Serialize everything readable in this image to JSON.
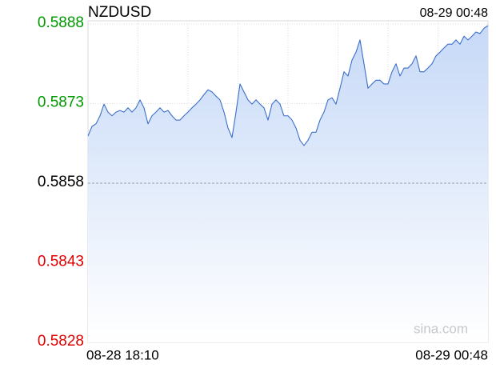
{
  "chart_data": {
    "type": "line",
    "title": "NZDUSD",
    "timestamp": "08-29 00:48",
    "watermark": "sina.com",
    "categories": [
      "08-28 18:10",
      null,
      null,
      null,
      null,
      null,
      null,
      null,
      null,
      null,
      null,
      null,
      null,
      null,
      null,
      null,
      null,
      null,
      null,
      null,
      null,
      null,
      null,
      null,
      null,
      null,
      null,
      null,
      null,
      null,
      null,
      null,
      null,
      null,
      null,
      null,
      null,
      null,
      null,
      null,
      null,
      null,
      null,
      null,
      null,
      null,
      null,
      null,
      null,
      null,
      null,
      null,
      null,
      null,
      null,
      null,
      null,
      null,
      null,
      null,
      null,
      null,
      null,
      null,
      null,
      null,
      null,
      null,
      null,
      null,
      null,
      null,
      null,
      null,
      null,
      null,
      null,
      null,
      null,
      null,
      null,
      null,
      null,
      null,
      null,
      null,
      null,
      null,
      null,
      null,
      null,
      null,
      null,
      null,
      null,
      null,
      null,
      null,
      null,
      null,
      "08-29 00:48"
    ],
    "series": [
      {
        "name": "NZDUSD",
        "color": "#3a6fc9",
        "values": [
          0.58669,
          0.58687,
          0.58692,
          0.58707,
          0.58729,
          0.58714,
          0.58707,
          0.58714,
          0.58717,
          0.58714,
          0.58722,
          0.58714,
          0.58722,
          0.58737,
          0.58722,
          0.58692,
          0.58707,
          0.58714,
          0.58722,
          0.58714,
          0.58717,
          0.58707,
          0.58699,
          0.58699,
          0.58707,
          0.58714,
          0.58722,
          0.58729,
          0.58737,
          0.58747,
          0.58756,
          0.58752,
          0.58744,
          0.58737,
          0.58714,
          0.58684,
          0.58666,
          0.58714,
          0.58767,
          0.58752,
          0.58737,
          0.58729,
          0.58737,
          0.58729,
          0.58722,
          0.58699,
          0.58729,
          0.58737,
          0.58729,
          0.58707,
          0.58707,
          0.58699,
          0.58684,
          0.58661,
          0.58651,
          0.58661,
          0.58676,
          0.58676,
          0.58699,
          0.58714,
          0.58737,
          0.58741,
          0.58729,
          0.58759,
          0.5879,
          0.58782,
          0.58812,
          0.58827,
          0.5885,
          0.58805,
          0.58759,
          0.58767,
          0.58774,
          0.58774,
          0.58767,
          0.58767,
          0.5879,
          0.58805,
          0.58782,
          0.58797,
          0.58797,
          0.58805,
          0.5882,
          0.5879,
          0.5879,
          0.58797,
          0.58805,
          0.5882,
          0.58827,
          0.58835,
          0.58842,
          0.58842,
          0.5885,
          0.58842,
          0.58857,
          0.5885,
          0.58857,
          0.58865,
          0.58862,
          0.58872,
          0.58877
        ]
      }
    ],
    "ylim": [
      0.5828,
      0.5888
    ],
    "yticks": [
      0.5888,
      0.5873,
      0.5858,
      0.5843,
      0.5828
    ],
    "reference": 0.5858,
    "up_color": "#009900",
    "down_color": "#e00000",
    "grid": true
  }
}
